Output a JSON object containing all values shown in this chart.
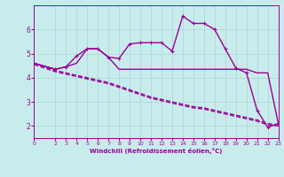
{
  "xlabel": "Windchill (Refroidissement éolien,°C)",
  "xlim": [
    0,
    23
  ],
  "ylim": [
    1.5,
    7.0
  ],
  "yticks": [
    2,
    3,
    4,
    5,
    6
  ],
  "xticks": [
    0,
    2,
    3,
    4,
    5,
    6,
    7,
    8,
    9,
    10,
    11,
    12,
    13,
    14,
    15,
    16,
    17,
    18,
    19,
    20,
    21,
    22,
    23
  ],
  "bg_color": "#c8ecec",
  "line_color": "#990099",
  "grid_color": "#b0d8d8",
  "series": [
    {
      "x": [
        0,
        2,
        3,
        4,
        5,
        6,
        7,
        8,
        9,
        10,
        11,
        12,
        13,
        14,
        15,
        16,
        17,
        18,
        19,
        20,
        21,
        22,
        23
      ],
      "y": [
        4.6,
        4.35,
        4.45,
        4.6,
        5.2,
        5.2,
        4.85,
        4.35,
        4.35,
        4.35,
        4.35,
        4.35,
        4.35,
        4.35,
        4.35,
        4.35,
        4.35,
        4.35,
        4.35,
        4.35,
        4.2,
        4.2,
        2.1
      ],
      "style": "-",
      "marker": null,
      "lw": 1.0
    },
    {
      "x": [
        0,
        2,
        3,
        4,
        5,
        6,
        7,
        8,
        9,
        10,
        11,
        12,
        13,
        14,
        15,
        16,
        17,
        18,
        19,
        20,
        21,
        22,
        23
      ],
      "y": [
        4.6,
        4.35,
        4.45,
        4.9,
        5.2,
        5.2,
        4.85,
        4.8,
        5.4,
        5.45,
        5.45,
        5.45,
        5.1,
        6.55,
        6.25,
        6.25,
        6.0,
        5.2,
        4.4,
        4.2,
        2.65,
        1.95,
        2.1
      ],
      "style": "-",
      "marker": "+",
      "lw": 1.0
    },
    {
      "x": [
        0,
        2,
        3,
        4,
        5,
        6,
        7,
        8,
        9,
        10,
        11,
        12,
        13,
        14,
        15,
        16,
        17,
        18,
        19,
        20,
        21,
        22,
        23
      ],
      "y": [
        4.6,
        4.3,
        4.2,
        4.1,
        4.0,
        3.9,
        3.8,
        3.65,
        3.5,
        3.35,
        3.2,
        3.1,
        3.0,
        2.9,
        2.8,
        2.75,
        2.65,
        2.55,
        2.45,
        2.35,
        2.25,
        2.1,
        2.05
      ],
      "style": "--",
      "marker": null,
      "lw": 1.0
    },
    {
      "x": [
        0,
        2,
        3,
        4,
        5,
        6,
        7,
        8,
        9,
        10,
        11,
        12,
        13,
        14,
        15,
        16,
        17,
        18,
        19,
        20,
        21,
        22,
        23
      ],
      "y": [
        4.55,
        4.25,
        4.15,
        4.05,
        3.95,
        3.85,
        3.75,
        3.6,
        3.45,
        3.3,
        3.15,
        3.05,
        2.95,
        2.85,
        2.75,
        2.7,
        2.6,
        2.5,
        2.4,
        2.3,
        2.2,
        2.05,
        2.0
      ],
      "style": "--",
      "marker": null,
      "lw": 1.0
    }
  ]
}
